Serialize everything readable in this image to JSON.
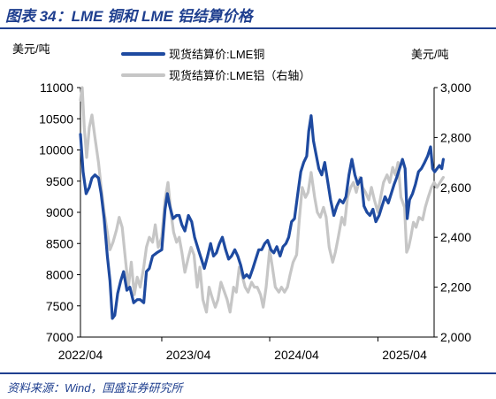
{
  "header": {
    "title": "图表 34：LME 铜和 LME 铝结算价格"
  },
  "footer": {
    "source": "资料来源：Wind，国盛证券研究所"
  },
  "chart_data": {
    "type": "line",
    "left_unit": "美元/吨",
    "right_unit": "美元/吨",
    "x_ticks": [
      "2022/04",
      "2023/04",
      "2024/04",
      "2025/04"
    ],
    "x_range": [
      "2022/04",
      "2025/07"
    ],
    "y_left": {
      "min": 7000,
      "max": 11000,
      "ticks": [
        7000,
        7500,
        8000,
        8500,
        9000,
        9500,
        10000,
        10500,
        11000
      ]
    },
    "y_right": {
      "min": 2000,
      "max": 3000,
      "ticks": [
        "2,000",
        "2,200",
        "2,400",
        "2,600",
        "2,800",
        "3,000"
      ]
    },
    "legend": [
      "现货结算价:LME铜",
      "现货结算价:LME铝（右轴）"
    ],
    "legend_position": "top",
    "series": [
      {
        "name": "现货结算价:LME铜",
        "axis": "left",
        "color": "#1e4aa0",
        "values": [
          [
            "2022-04-01",
            10250
          ],
          [
            "2022-04-10",
            9650
          ],
          [
            "2022-04-20",
            9300
          ],
          [
            "2022-05-01",
            9400
          ],
          [
            "2022-05-10",
            9550
          ],
          [
            "2022-05-20",
            9600
          ],
          [
            "2022-06-01",
            9550
          ],
          [
            "2022-06-10",
            9300
          ],
          [
            "2022-06-20",
            8900
          ],
          [
            "2022-07-01",
            8300
          ],
          [
            "2022-07-10",
            7900
          ],
          [
            "2022-07-18",
            7300
          ],
          [
            "2022-07-26",
            7350
          ],
          [
            "2022-08-05",
            7700
          ],
          [
            "2022-08-15",
            7900
          ],
          [
            "2022-08-25",
            8050
          ],
          [
            "2022-09-05",
            7750
          ],
          [
            "2022-09-15",
            7800
          ],
          [
            "2022-09-28",
            7550
          ],
          [
            "2022-10-10",
            7600
          ],
          [
            "2022-10-20",
            7600
          ],
          [
            "2022-11-01",
            7550
          ],
          [
            "2022-11-10",
            8050
          ],
          [
            "2022-11-20",
            8100
          ],
          [
            "2022-12-01",
            8300
          ],
          [
            "2022-12-15",
            8350
          ],
          [
            "2023-01-01",
            8400
          ],
          [
            "2023-01-12",
            9050
          ],
          [
            "2023-01-20",
            9300
          ],
          [
            "2023-01-28",
            9100
          ],
          [
            "2023-02-08",
            8900
          ],
          [
            "2023-02-20",
            8950
          ],
          [
            "2023-03-01",
            8950
          ],
          [
            "2023-03-10",
            8800
          ],
          [
            "2023-03-20",
            8700
          ],
          [
            "2023-04-01",
            8950
          ],
          [
            "2023-04-12",
            8850
          ],
          [
            "2023-04-22",
            8600
          ],
          [
            "2023-05-05",
            8400
          ],
          [
            "2023-05-15",
            8250
          ],
          [
            "2023-05-25",
            8100
          ],
          [
            "2023-06-05",
            8300
          ],
          [
            "2023-06-15",
            8500
          ],
          [
            "2023-06-25",
            8300
          ],
          [
            "2023-07-05",
            8350
          ],
          [
            "2023-07-15",
            8500
          ],
          [
            "2023-07-25",
            8600
          ],
          [
            "2023-08-05",
            8400
          ],
          [
            "2023-08-15",
            8250
          ],
          [
            "2023-08-25",
            8300
          ],
          [
            "2023-09-05",
            8400
          ],
          [
            "2023-09-15",
            8300
          ],
          [
            "2023-09-25",
            8150
          ],
          [
            "2023-10-05",
            7950
          ],
          [
            "2023-10-15",
            8000
          ],
          [
            "2023-10-25",
            7950
          ],
          [
            "2023-11-05",
            8100
          ],
          [
            "2023-11-15",
            8250
          ],
          [
            "2023-11-25",
            8400
          ],
          [
            "2023-12-05",
            8400
          ],
          [
            "2023-12-15",
            8500
          ],
          [
            "2023-12-25",
            8550
          ],
          [
            "2024-01-05",
            8400
          ],
          [
            "2024-01-15",
            8350
          ],
          [
            "2024-01-25",
            8450
          ],
          [
            "2024-02-05",
            8300
          ],
          [
            "2024-02-15",
            8450
          ],
          [
            "2024-02-25",
            8500
          ],
          [
            "2024-03-05",
            8600
          ],
          [
            "2024-03-15",
            8850
          ],
          [
            "2024-03-25",
            8900
          ],
          [
            "2024-04-05",
            9300
          ],
          [
            "2024-04-15",
            9650
          ],
          [
            "2024-04-25",
            9800
          ],
          [
            "2024-05-05",
            9900
          ],
          [
            "2024-05-12",
            10300
          ],
          [
            "2024-05-20",
            10550
          ],
          [
            "2024-05-28",
            10150
          ],
          [
            "2024-06-05",
            9950
          ],
          [
            "2024-06-15",
            9700
          ],
          [
            "2024-06-25",
            9600
          ],
          [
            "2024-07-05",
            9800
          ],
          [
            "2024-07-15",
            9500
          ],
          [
            "2024-07-25",
            9200
          ],
          [
            "2024-08-05",
            8950
          ],
          [
            "2024-08-15",
            9100
          ],
          [
            "2024-08-25",
            9200
          ],
          [
            "2024-09-05",
            9150
          ],
          [
            "2024-09-15",
            9250
          ],
          [
            "2024-09-25",
            9600
          ],
          [
            "2024-10-05",
            9850
          ],
          [
            "2024-10-15",
            9600
          ],
          [
            "2024-10-25",
            9450
          ],
          [
            "2024-11-05",
            9550
          ],
          [
            "2024-11-15",
            9100
          ],
          [
            "2024-11-25",
            9000
          ],
          [
            "2024-12-05",
            8950
          ],
          [
            "2024-12-15",
            9050
          ],
          [
            "2024-12-25",
            8850
          ],
          [
            "2025-01-05",
            8950
          ],
          [
            "2025-01-15",
            9100
          ],
          [
            "2025-01-25",
            9250
          ],
          [
            "2025-02-05",
            9150
          ],
          [
            "2025-02-15",
            9300
          ],
          [
            "2025-02-25",
            9450
          ],
          [
            "2025-03-05",
            9550
          ],
          [
            "2025-03-15",
            9700
          ],
          [
            "2025-03-25",
            9850
          ],
          [
            "2025-04-03",
            9700
          ],
          [
            "2025-04-10",
            8900
          ],
          [
            "2025-04-18",
            9200
          ],
          [
            "2025-04-28",
            9300
          ],
          [
            "2025-05-08",
            9450
          ],
          [
            "2025-05-18",
            9650
          ],
          [
            "2025-05-28",
            9700
          ],
          [
            "2025-06-08",
            9800
          ],
          [
            "2025-06-18",
            9900
          ],
          [
            "2025-06-28",
            10050
          ],
          [
            "2025-07-05",
            9700
          ],
          [
            "2025-07-12",
            9650
          ],
          [
            "2025-07-20",
            9700
          ],
          [
            "2025-07-28",
            9750
          ],
          [
            "2025-08-05",
            9700
          ],
          [
            "2025-08-10",
            9850
          ]
        ]
      },
      {
        "name": "现货结算价:LME铝（右轴）",
        "axis": "right",
        "color": "#c6c6c6",
        "values": [
          [
            "2022-04-01",
            2950
          ],
          [
            "2022-04-07",
            3000
          ],
          [
            "2022-04-14",
            2840
          ],
          [
            "2022-04-22",
            2720
          ],
          [
            "2022-05-01",
            2840
          ],
          [
            "2022-05-10",
            2890
          ],
          [
            "2022-05-20",
            2800
          ],
          [
            "2022-06-01",
            2700
          ],
          [
            "2022-06-10",
            2600
          ],
          [
            "2022-06-20",
            2500
          ],
          [
            "2022-07-01",
            2420
          ],
          [
            "2022-07-10",
            2350
          ],
          [
            "2022-07-20",
            2380
          ],
          [
            "2022-08-01",
            2430
          ],
          [
            "2022-08-10",
            2480
          ],
          [
            "2022-08-20",
            2440
          ],
          [
            "2022-09-01",
            2300
          ],
          [
            "2022-09-10",
            2200
          ],
          [
            "2022-09-20",
            2300
          ],
          [
            "2022-09-30",
            2170
          ],
          [
            "2022-10-10",
            2240
          ],
          [
            "2022-10-20",
            2200
          ],
          [
            "2022-11-01",
            2280
          ],
          [
            "2022-11-10",
            2360
          ],
          [
            "2022-11-20",
            2400
          ],
          [
            "2022-12-01",
            2380
          ],
          [
            "2022-12-10",
            2450
          ],
          [
            "2022-12-20",
            2360
          ],
          [
            "2023-01-01",
            2400
          ],
          [
            "2023-01-12",
            2550
          ],
          [
            "2023-01-22",
            2620
          ],
          [
            "2023-02-01",
            2500
          ],
          [
            "2023-02-10",
            2420
          ],
          [
            "2023-02-20",
            2380
          ],
          [
            "2023-03-01",
            2400
          ],
          [
            "2023-03-10",
            2340
          ],
          [
            "2023-03-20",
            2260
          ],
          [
            "2023-04-01",
            2320
          ],
          [
            "2023-04-10",
            2360
          ],
          [
            "2023-04-20",
            2330
          ],
          [
            "2023-05-01",
            2200
          ],
          [
            "2023-05-10",
            2280
          ],
          [
            "2023-05-20",
            2150
          ],
          [
            "2023-06-01",
            2100
          ],
          [
            "2023-06-10",
            2200
          ],
          [
            "2023-06-20",
            2160
          ],
          [
            "2023-07-01",
            2120
          ],
          [
            "2023-07-10",
            2150
          ],
          [
            "2023-07-20",
            2220
          ],
          [
            "2023-08-01",
            2180
          ],
          [
            "2023-08-10",
            2150
          ],
          [
            "2023-08-20",
            2100
          ],
          [
            "2023-09-01",
            2200
          ],
          [
            "2023-09-10",
            2180
          ],
          [
            "2023-09-20",
            2280
          ],
          [
            "2023-10-01",
            2240
          ],
          [
            "2023-10-10",
            2200
          ],
          [
            "2023-10-20",
            2180
          ],
          [
            "2023-11-01",
            2220
          ],
          [
            "2023-11-10",
            2200
          ],
          [
            "2023-11-20",
            2200
          ],
          [
            "2023-12-01",
            2170
          ],
          [
            "2023-12-10",
            2120
          ],
          [
            "2023-12-20",
            2200
          ],
          [
            "2024-01-01",
            2350
          ],
          [
            "2024-01-10",
            2280
          ],
          [
            "2024-01-20",
            2200
          ],
          [
            "2024-02-01",
            2180
          ],
          [
            "2024-02-10",
            2200
          ],
          [
            "2024-02-20",
            2180
          ],
          [
            "2024-03-01",
            2200
          ],
          [
            "2024-03-10",
            2250
          ],
          [
            "2024-03-20",
            2300
          ],
          [
            "2024-04-01",
            2330
          ],
          [
            "2024-04-10",
            2470
          ],
          [
            "2024-04-20",
            2600
          ],
          [
            "2024-05-01",
            2560
          ],
          [
            "2024-05-10",
            2580
          ],
          [
            "2024-05-20",
            2660
          ],
          [
            "2024-06-01",
            2560
          ],
          [
            "2024-06-10",
            2500
          ],
          [
            "2024-06-20",
            2480
          ],
          [
            "2024-07-01",
            2520
          ],
          [
            "2024-07-10",
            2480
          ],
          [
            "2024-07-20",
            2360
          ],
          [
            "2024-08-01",
            2300
          ],
          [
            "2024-08-10",
            2340
          ],
          [
            "2024-08-20",
            2400
          ],
          [
            "2024-09-01",
            2480
          ],
          [
            "2024-09-10",
            2450
          ],
          [
            "2024-09-20",
            2560
          ],
          [
            "2024-10-01",
            2600
          ],
          [
            "2024-10-10",
            2620
          ],
          [
            "2024-10-20",
            2580
          ],
          [
            "2024-11-01",
            2640
          ],
          [
            "2024-11-10",
            2600
          ],
          [
            "2024-11-20",
            2580
          ],
          [
            "2024-12-01",
            2550
          ],
          [
            "2024-12-10",
            2600
          ],
          [
            "2024-12-20",
            2550
          ],
          [
            "2025-01-01",
            2500
          ],
          [
            "2025-01-10",
            2560
          ],
          [
            "2025-01-20",
            2620
          ],
          [
            "2025-02-01",
            2650
          ],
          [
            "2025-02-10",
            2620
          ],
          [
            "2025-02-20",
            2680
          ],
          [
            "2025-03-01",
            2650
          ],
          [
            "2025-03-10",
            2700
          ],
          [
            "2025-03-20",
            2560
          ],
          [
            "2025-04-01",
            2520
          ],
          [
            "2025-04-08",
            2340
          ],
          [
            "2025-04-15",
            2360
          ],
          [
            "2025-04-22",
            2400
          ],
          [
            "2025-05-01",
            2460
          ],
          [
            "2025-05-10",
            2440
          ],
          [
            "2025-05-20",
            2480
          ],
          [
            "2025-06-01",
            2470
          ],
          [
            "2025-06-10",
            2520
          ],
          [
            "2025-06-20",
            2560
          ],
          [
            "2025-07-01",
            2600
          ],
          [
            "2025-07-10",
            2620
          ],
          [
            "2025-07-20",
            2600
          ],
          [
            "2025-07-30",
            2620
          ],
          [
            "2025-08-10",
            2640
          ]
        ]
      }
    ]
  }
}
